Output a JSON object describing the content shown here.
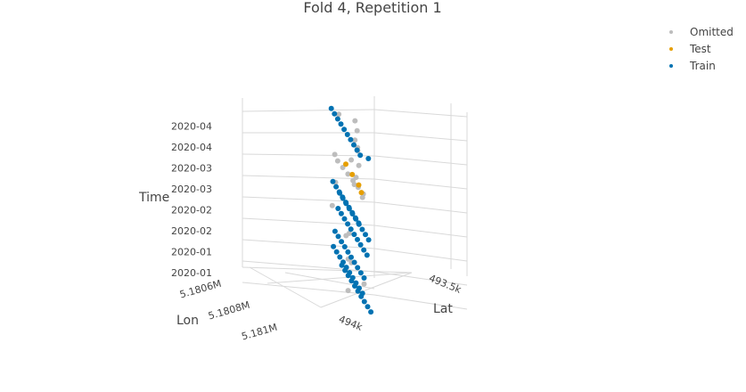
{
  "chart_data": {
    "type": "scatter",
    "title": "Fold 4, Repetition 1",
    "axes": {
      "x": {
        "title": "Lat",
        "ticks": [
          "493.5k",
          "494k"
        ]
      },
      "y": {
        "title": "Lon",
        "ticks": [
          "5.1806M",
          "5.1808M",
          "5.181M"
        ]
      },
      "z": {
        "title": "Time",
        "ticks": [
          "2020-01",
          "2020-01",
          "2020-02",
          "2020-02",
          "2020-03",
          "2020-03",
          "2020-04",
          "2020-04"
        ]
      }
    },
    "legend": {
      "placement": "top-right",
      "entries": [
        {
          "name": "Omitted",
          "color": "#bdbdbd"
        },
        {
          "name": "Test",
          "color": "#e69f00"
        },
        {
          "name": "Train",
          "color": "#0072b2"
        }
      ]
    },
    "series": [
      {
        "name": "Omitted",
        "color": "#bdbdbd",
        "x": [
          493.55,
          493.62,
          493.7,
          493.78,
          493.86,
          493.94,
          494.02,
          493.6,
          493.74,
          493.9,
          493.66,
          493.84,
          494.05,
          493.58,
          493.8,
          493.96,
          493.7,
          493.88,
          493.52,
          493.64,
          493.76,
          493.82,
          493.92,
          494.08,
          493.68,
          493.86
        ],
        "y": [
          5.18065,
          5.1807,
          5.18075,
          5.1808,
          5.18085,
          5.1809,
          5.18095,
          5.1806,
          5.18072,
          5.18088,
          5.18068,
          5.18082,
          5.18098,
          5.18066,
          5.18078,
          5.18092,
          5.1807,
          5.18086,
          5.18062,
          5.18074,
          5.18079,
          5.18083,
          5.18091,
          5.181,
          5.18071,
          5.18087
        ],
        "z": [
          "2020-03-18",
          "2020-03-18",
          "2020-03-18",
          "2020-03-18",
          "2020-03-18",
          "2020-03-18",
          "2020-03-18",
          "2020-03-18",
          "2020-03-18",
          "2020-03-18",
          "2020-03-18",
          "2020-03-18",
          "2020-03-18",
          "2020-04-15",
          "2020-04-15",
          "2020-04-15",
          "2020-04-15",
          "2020-04-15",
          "2020-02-26",
          "2020-02-20",
          "2020-02-05",
          "2020-02-10",
          "2020-01-28",
          "2020-01-22",
          "2020-01-14",
          "2020-01-06"
        ]
      },
      {
        "name": "Test",
        "color": "#e69f00",
        "x": [
          493.68,
          493.8,
          493.92,
          494.0
        ],
        "y": [
          5.18072,
          5.1808,
          5.18088,
          5.18094
        ],
        "z": [
          "2020-03-18",
          "2020-03-18",
          "2020-03-18",
          "2020-03-18"
        ]
      },
      {
        "name": "Train",
        "color": "#0072b2",
        "x": [
          493.5,
          493.56,
          493.62,
          493.68,
          493.74,
          493.8,
          493.86,
          493.92,
          493.98,
          494.04,
          494.1,
          493.53,
          493.59,
          493.65,
          493.71,
          493.77,
          493.83,
          493.89,
          493.95,
          494.01,
          493.55,
          493.61,
          493.67,
          493.73,
          493.79,
          493.85,
          493.91,
          493.97,
          494.03,
          494.09,
          493.52,
          493.58,
          493.64,
          493.7,
          493.76,
          493.82,
          493.88,
          493.94,
          494.0,
          494.06,
          493.54,
          493.6,
          493.66,
          493.72,
          493.78,
          493.84,
          493.9,
          493.96,
          494.02,
          494.08,
          493.51,
          493.57,
          493.63,
          493.69,
          493.75,
          493.81,
          493.87,
          493.93,
          493.99,
          494.05,
          493.56,
          493.62,
          493.68,
          493.74,
          493.8,
          493.86,
          493.92,
          493.98,
          494.04,
          494.1
        ],
        "y": [
          5.18062,
          5.18066,
          5.1807,
          5.18074,
          5.18078,
          5.18082,
          5.18086,
          5.1809,
          5.18094,
          5.18098,
          5.181,
          5.18064,
          5.18068,
          5.18072,
          5.18076,
          5.1808,
          5.18084,
          5.18088,
          5.18092,
          5.18096,
          5.18063,
          5.18067,
          5.18071,
          5.18075,
          5.18079,
          5.18083,
          5.18087,
          5.18091,
          5.18095,
          5.18099,
          5.18061,
          5.18065,
          5.18069,
          5.18073,
          5.18077,
          5.18081,
          5.18085,
          5.18089,
          5.18093,
          5.18097,
          5.18064,
          5.18068,
          5.18072,
          5.18076,
          5.1808,
          5.18084,
          5.18088,
          5.18092,
          5.18096,
          5.181,
          5.18062,
          5.18066,
          5.1807,
          5.18074,
          5.18078,
          5.18082,
          5.18086,
          5.1809,
          5.18094,
          5.18098,
          5.18063,
          5.18067,
          5.18071,
          5.18075,
          5.18079,
          5.18083,
          5.18087,
          5.18091,
          5.18095,
          5.18099
        ],
        "z": [
          "2020-04-15",
          "2020-04-15",
          "2020-04-15",
          "2020-04-15",
          "2020-04-15",
          "2020-04-15",
          "2020-04-15",
          "2020-04-15",
          "2020-04-15",
          "2020-04-15",
          "2020-04-15",
          "2020-02-28",
          "2020-02-28",
          "2020-02-28",
          "2020-02-28",
          "2020-02-28",
          "2020-02-28",
          "2020-02-28",
          "2020-02-28",
          "2020-02-28",
          "2020-02-20",
          "2020-02-20",
          "2020-02-20",
          "2020-02-20",
          "2020-02-20",
          "2020-02-20",
          "2020-02-20",
          "2020-02-20",
          "2020-02-20",
          "2020-02-20",
          "2020-02-08",
          "2020-02-08",
          "2020-02-08",
          "2020-02-08",
          "2020-02-08",
          "2020-02-08",
          "2020-02-08",
          "2020-02-08",
          "2020-02-08",
          "2020-02-08",
          "2020-01-26",
          "2020-01-26",
          "2020-01-26",
          "2020-01-26",
          "2020-01-26",
          "2020-01-26",
          "2020-01-26",
          "2020-01-26",
          "2020-01-26",
          "2020-01-26",
          "2020-01-14",
          "2020-01-14",
          "2020-01-14",
          "2020-01-14",
          "2020-01-14",
          "2020-01-14",
          "2020-01-14",
          "2020-01-14",
          "2020-01-14",
          "2020-01-14",
          "2020-01-03",
          "2020-01-03",
          "2020-01-03",
          "2020-01-03",
          "2020-01-03",
          "2020-01-03",
          "2020-01-03",
          "2020-01-03",
          "2020-01-03",
          "2020-01-03"
        ]
      }
    ]
  }
}
